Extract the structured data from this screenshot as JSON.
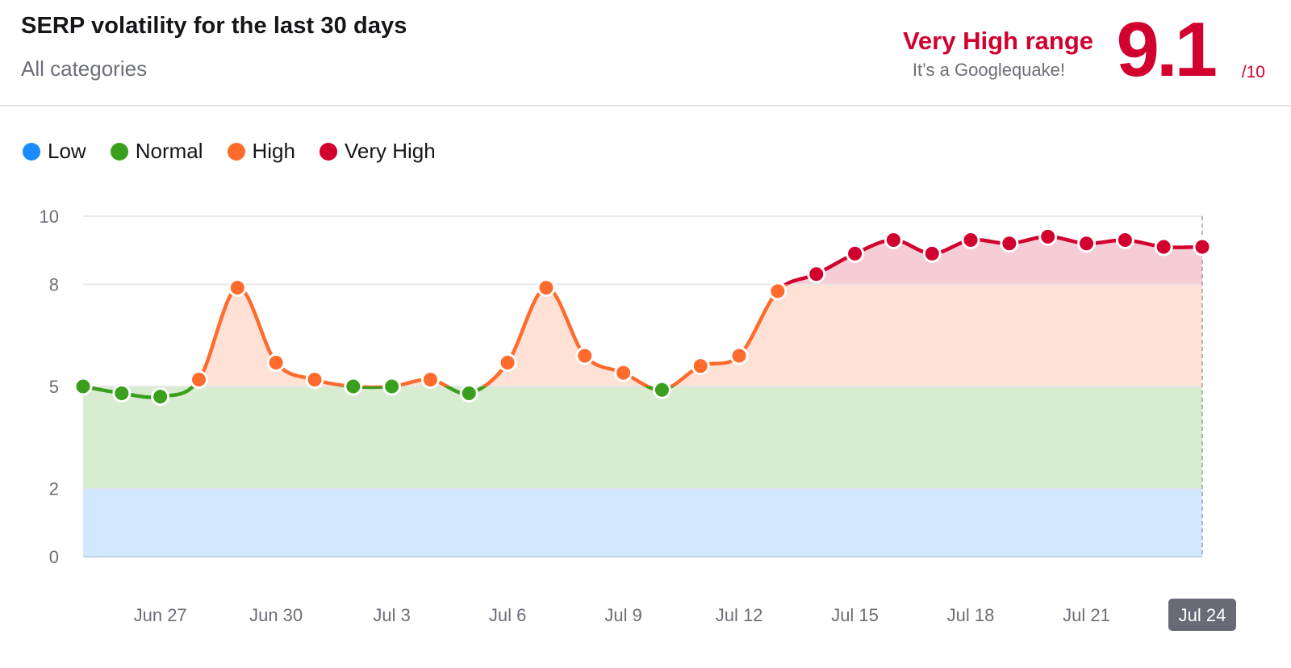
{
  "header": {
    "title": "SERP volatility for the last 30 days",
    "subtitle": "All categories",
    "range_label": "Very High range",
    "range_note": "It’s a Googlequake!",
    "score": "9.1",
    "score_max": "/10",
    "accent_color": "#d1002f"
  },
  "legend": [
    {
      "label": "Low",
      "color": "#1a8cff"
    },
    {
      "label": "Normal",
      "color": "#3a9f1c"
    },
    {
      "label": "High",
      "color": "#ff6b2c"
    },
    {
      "label": "Very High",
      "color": "#d1002f"
    }
  ],
  "chart_data": {
    "type": "line",
    "title": "SERP volatility for the last 30 days",
    "subtitle": "All categories",
    "y_ticks": [
      0,
      2,
      5,
      8,
      10
    ],
    "ylim": [
      0,
      10
    ],
    "x": [
      "Jun 25",
      "Jun 26",
      "Jun 27",
      "Jun 28",
      "Jun 29",
      "Jun 30",
      "Jul 1",
      "Jul 2",
      "Jul 3",
      "Jul 4",
      "Jul 5",
      "Jul 6",
      "Jul 7",
      "Jul 8",
      "Jul 9",
      "Jul 10",
      "Jul 11",
      "Jul 12",
      "Jul 13",
      "Jul 14",
      "Jul 15",
      "Jul 16",
      "Jul 17",
      "Jul 18",
      "Jul 19",
      "Jul 20",
      "Jul 21",
      "Jul 22",
      "Jul 23",
      "Jul 24"
    ],
    "x_tick_labels": [
      "Jun 27",
      "Jun 30",
      "Jul 3",
      "Jul 6",
      "Jul 9",
      "Jul 12",
      "Jul 15",
      "Jul 18",
      "Jul 21",
      "Jul 24"
    ],
    "highlighted_x": "Jul 24",
    "series": [
      {
        "values": [
          5.0,
          4.8,
          4.7,
          5.2,
          7.9,
          5.7,
          5.2,
          5.0,
          5.0,
          5.2,
          4.8,
          5.7,
          7.9,
          5.9,
          5.4,
          4.9,
          5.6,
          5.9,
          7.8,
          8.3,
          8.9,
          9.3,
          8.9,
          9.3,
          9.2,
          9.4,
          9.2,
          9.3,
          9.1,
          9.1
        ]
      }
    ],
    "bands": [
      {
        "name": "Low",
        "from": 0,
        "to": 2,
        "color": "#1a8cff"
      },
      {
        "name": "Normal",
        "from": 2,
        "to": 5,
        "color": "#3a9f1c"
      },
      {
        "name": "High",
        "from": 5,
        "to": 8,
        "color": "#ff6b2c"
      },
      {
        "name": "Very High",
        "from": 8,
        "to": 10,
        "color": "#d1002f"
      }
    ],
    "grid": true
  }
}
